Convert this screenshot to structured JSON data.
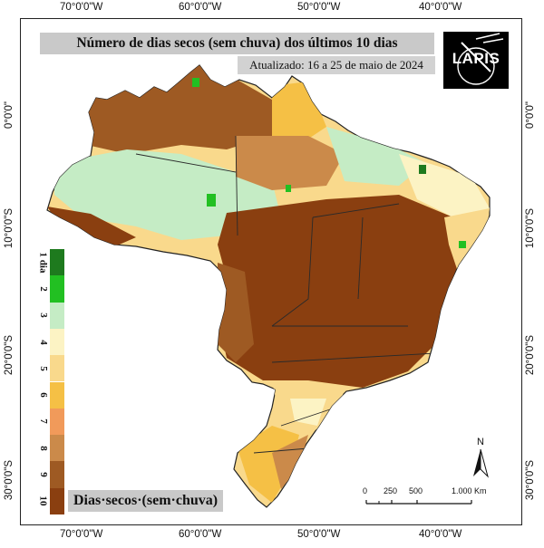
{
  "map": {
    "title": "Número de dias secos (sem chuva) dos últimos 10 dias",
    "subtitle": "Atualizado: 16 a 25 de maio de 2024",
    "logo_text": "LAPIS",
    "legend_caption": "Dias·secos·(sem·chuva)"
  },
  "ticks": {
    "lon": [
      "70°0'0\"W",
      "60°0'0\"W",
      "50°0'0\"W",
      "40°0'0\"W"
    ],
    "lat": [
      "0°0'0\"",
      "10°0'0\"S",
      "20°0'0\"S",
      "30°0'0\"S"
    ]
  },
  "legend": [
    {
      "label": "1 dia",
      "color": "#1e7a1e"
    },
    {
      "label": "2",
      "color": "#22c022"
    },
    {
      "label": "3",
      "color": "#c5ecc5"
    },
    {
      "label": "4",
      "color": "#fcf3c4"
    },
    {
      "label": "5",
      "color": "#f9d98c"
    },
    {
      "label": "6",
      "color": "#f5c045"
    },
    {
      "label": "7",
      "color": "#f19a5a"
    },
    {
      "label": "8",
      "color": "#cb8a4a"
    },
    {
      "label": "9",
      "color": "#9e5a23"
    },
    {
      "label": "10",
      "color": "#8a3f10"
    }
  ],
  "scale": {
    "labels": [
      "0",
      "250",
      "500",
      "1.000 Km"
    ]
  },
  "north": {
    "label": "N"
  }
}
